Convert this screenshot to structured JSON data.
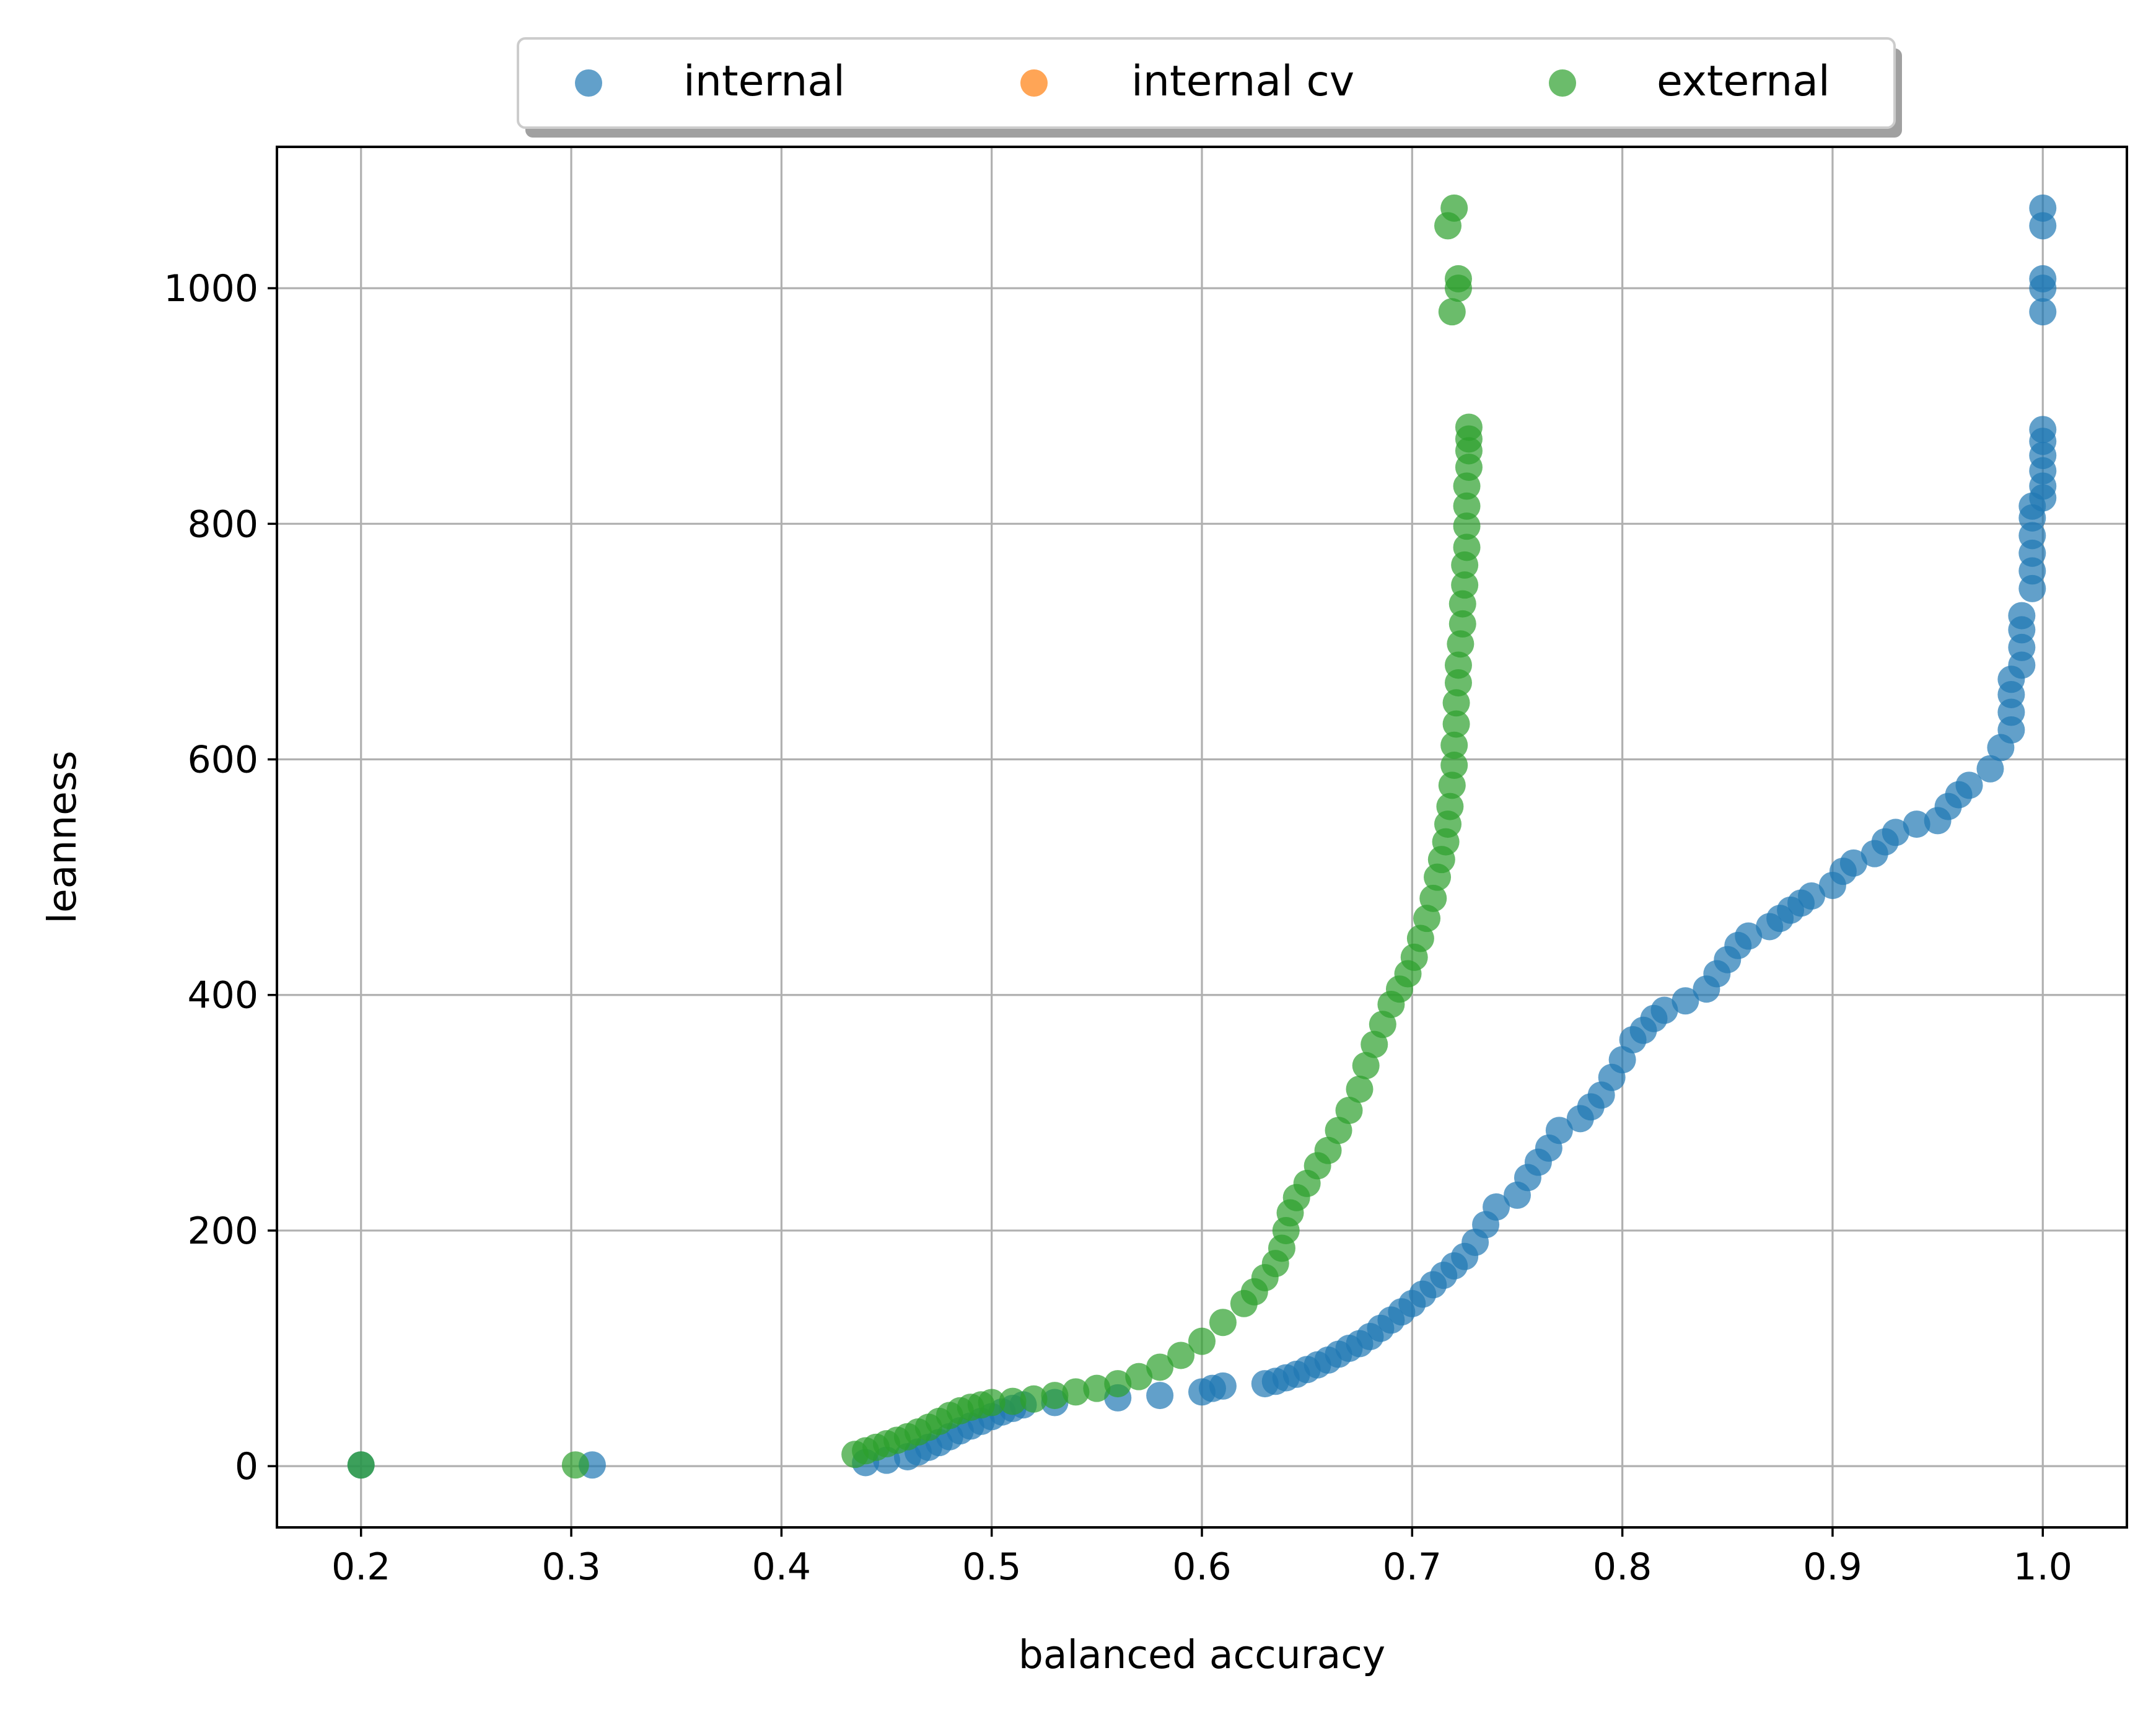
{
  "chart_data": {
    "type": "scatter",
    "title": "",
    "xlabel": "balanced accuracy",
    "ylabel": "leanness",
    "xlim": [
      0.16,
      1.04
    ],
    "ylim": [
      -52,
      1120
    ],
    "xticks": [
      0.2,
      0.3,
      0.4,
      0.5,
      0.6,
      0.7,
      0.8,
      0.9,
      1.0
    ],
    "xtick_labels": [
      "0.2",
      "0.3",
      "0.4",
      "0.5",
      "0.6",
      "0.7",
      "0.8",
      "0.9",
      "1.0"
    ],
    "yticks": [
      0,
      200,
      400,
      600,
      800,
      1000
    ],
    "ytick_labels": [
      "0",
      "200",
      "400",
      "600",
      "800",
      "1000"
    ],
    "grid": true,
    "legend_position": "top-center (outside plot)",
    "series": [
      {
        "name": "internal",
        "color": "#1f77b4",
        "points": [
          [
            0.2,
            1
          ],
          [
            0.31,
            1
          ],
          [
            0.44,
            3
          ],
          [
            0.45,
            5
          ],
          [
            0.46,
            8
          ],
          [
            0.465,
            12
          ],
          [
            0.47,
            16
          ],
          [
            0.475,
            20
          ],
          [
            0.48,
            25
          ],
          [
            0.485,
            30
          ],
          [
            0.49,
            34
          ],
          [
            0.495,
            38
          ],
          [
            0.5,
            42
          ],
          [
            0.505,
            46
          ],
          [
            0.51,
            49
          ],
          [
            0.515,
            52
          ],
          [
            0.53,
            54
          ],
          [
            0.56,
            58
          ],
          [
            0.58,
            60
          ],
          [
            0.6,
            63
          ],
          [
            0.605,
            66
          ],
          [
            0.61,
            68
          ],
          [
            0.63,
            70
          ],
          [
            0.635,
            72
          ],
          [
            0.64,
            75
          ],
          [
            0.645,
            78
          ],
          [
            0.65,
            82
          ],
          [
            0.655,
            86
          ],
          [
            0.66,
            90
          ],
          [
            0.665,
            95
          ],
          [
            0.67,
            100
          ],
          [
            0.675,
            104
          ],
          [
            0.68,
            110
          ],
          [
            0.685,
            117
          ],
          [
            0.69,
            124
          ],
          [
            0.695,
            131
          ],
          [
            0.7,
            138
          ],
          [
            0.705,
            146
          ],
          [
            0.71,
            154
          ],
          [
            0.715,
            162
          ],
          [
            0.72,
            170
          ],
          [
            0.725,
            178
          ],
          [
            0.73,
            190
          ],
          [
            0.735,
            205
          ],
          [
            0.74,
            220
          ],
          [
            0.75,
            230
          ],
          [
            0.755,
            245
          ],
          [
            0.76,
            258
          ],
          [
            0.765,
            270
          ],
          [
            0.77,
            285
          ],
          [
            0.78,
            295
          ],
          [
            0.785,
            305
          ],
          [
            0.79,
            315
          ],
          [
            0.795,
            330
          ],
          [
            0.8,
            345
          ],
          [
            0.805,
            362
          ],
          [
            0.81,
            370
          ],
          [
            0.815,
            380
          ],
          [
            0.82,
            387
          ],
          [
            0.83,
            395
          ],
          [
            0.84,
            405
          ],
          [
            0.845,
            418
          ],
          [
            0.85,
            430
          ],
          [
            0.855,
            442
          ],
          [
            0.86,
            450
          ],
          [
            0.87,
            458
          ],
          [
            0.875,
            465
          ],
          [
            0.88,
            472
          ],
          [
            0.885,
            478
          ],
          [
            0.89,
            484
          ],
          [
            0.9,
            493
          ],
          [
            0.905,
            505
          ],
          [
            0.91,
            512
          ],
          [
            0.92,
            520
          ],
          [
            0.925,
            530
          ],
          [
            0.93,
            538
          ],
          [
            0.94,
            545
          ],
          [
            0.95,
            548
          ],
          [
            0.955,
            560
          ],
          [
            0.96,
            570
          ],
          [
            0.965,
            578
          ],
          [
            0.975,
            592
          ],
          [
            0.98,
            610
          ],
          [
            0.985,
            625
          ],
          [
            0.985,
            640
          ],
          [
            0.985,
            655
          ],
          [
            0.985,
            668
          ],
          [
            0.99,
            680
          ],
          [
            0.99,
            695
          ],
          [
            0.99,
            710
          ],
          [
            0.99,
            722
          ],
          [
            0.995,
            745
          ],
          [
            0.995,
            760
          ],
          [
            0.995,
            775
          ],
          [
            0.995,
            790
          ],
          [
            0.995,
            805
          ],
          [
            0.995,
            815
          ],
          [
            1.0,
            822
          ],
          [
            1.0,
            832
          ],
          [
            1.0,
            845
          ],
          [
            1.0,
            858
          ],
          [
            1.0,
            870
          ],
          [
            1.0,
            880
          ],
          [
            1.0,
            980
          ],
          [
            1.0,
            1000
          ],
          [
            1.0,
            1008
          ],
          [
            1.0,
            1053
          ],
          [
            1.0,
            1068
          ]
        ]
      },
      {
        "name": "internal cv",
        "color": "#ff7f0e",
        "points": []
      },
      {
        "name": "external",
        "color": "#2ca02c",
        "points": [
          [
            0.2,
            1
          ],
          [
            0.302,
            1
          ],
          [
            0.435,
            10
          ],
          [
            0.44,
            13
          ],
          [
            0.445,
            16
          ],
          [
            0.45,
            19
          ],
          [
            0.455,
            22
          ],
          [
            0.46,
            25
          ],
          [
            0.465,
            29
          ],
          [
            0.47,
            33
          ],
          [
            0.475,
            38
          ],
          [
            0.48,
            43
          ],
          [
            0.485,
            47
          ],
          [
            0.49,
            50
          ],
          [
            0.495,
            52
          ],
          [
            0.5,
            54
          ],
          [
            0.51,
            55
          ],
          [
            0.52,
            57
          ],
          [
            0.53,
            60
          ],
          [
            0.54,
            63
          ],
          [
            0.55,
            66
          ],
          [
            0.56,
            70
          ],
          [
            0.57,
            76
          ],
          [
            0.58,
            84
          ],
          [
            0.59,
            94
          ],
          [
            0.6,
            106
          ],
          [
            0.61,
            122
          ],
          [
            0.62,
            138
          ],
          [
            0.625,
            148
          ],
          [
            0.63,
            160
          ],
          [
            0.635,
            172
          ],
          [
            0.638,
            185
          ],
          [
            0.64,
            200
          ],
          [
            0.642,
            215
          ],
          [
            0.645,
            228
          ],
          [
            0.65,
            240
          ],
          [
            0.655,
            255
          ],
          [
            0.66,
            268
          ],
          [
            0.665,
            285
          ],
          [
            0.67,
            302
          ],
          [
            0.675,
            320
          ],
          [
            0.678,
            340
          ],
          [
            0.682,
            358
          ],
          [
            0.686,
            375
          ],
          [
            0.69,
            392
          ],
          [
            0.694,
            405
          ],
          [
            0.698,
            418
          ],
          [
            0.701,
            432
          ],
          [
            0.704,
            448
          ],
          [
            0.707,
            465
          ],
          [
            0.71,
            482
          ],
          [
            0.712,
            500
          ],
          [
            0.714,
            515
          ],
          [
            0.716,
            530
          ],
          [
            0.717,
            545
          ],
          [
            0.718,
            560
          ],
          [
            0.719,
            578
          ],
          [
            0.72,
            595
          ],
          [
            0.72,
            612
          ],
          [
            0.721,
            630
          ],
          [
            0.721,
            648
          ],
          [
            0.722,
            665
          ],
          [
            0.722,
            680
          ],
          [
            0.723,
            698
          ],
          [
            0.724,
            715
          ],
          [
            0.724,
            732
          ],
          [
            0.725,
            748
          ],
          [
            0.725,
            765
          ],
          [
            0.726,
            780
          ],
          [
            0.726,
            798
          ],
          [
            0.726,
            815
          ],
          [
            0.726,
            832
          ],
          [
            0.727,
            848
          ],
          [
            0.727,
            862
          ],
          [
            0.727,
            872
          ],
          [
            0.727,
            882
          ],
          [
            0.719,
            980
          ],
          [
            0.722,
            1000
          ],
          [
            0.722,
            1008
          ],
          [
            0.717,
            1053
          ],
          [
            0.72,
            1068
          ]
        ]
      }
    ]
  }
}
